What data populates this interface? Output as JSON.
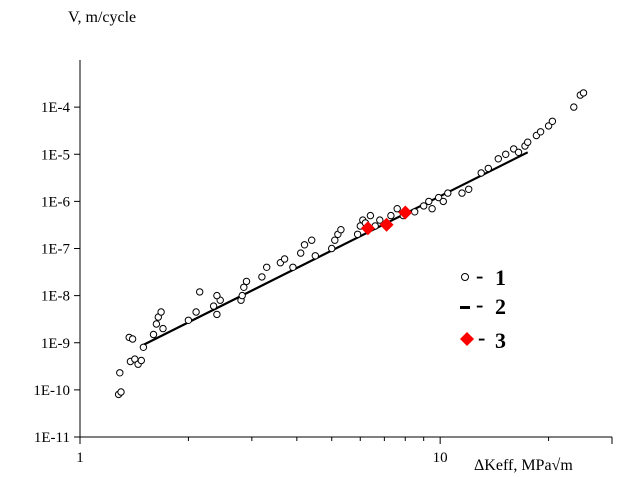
{
  "chart_data": {
    "type": "scatter",
    "x_scale": "log",
    "y_scale": "log",
    "xlim": [
      1,
      30
    ],
    "ylim": [
      1e-11,
      0.001
    ],
    "xlabel": "ΔKeff, MPa√m",
    "ylabel": "V, m/cycle",
    "grid": false,
    "legend_position": "right",
    "x_ticks": [
      {
        "value": 1,
        "label": "1"
      },
      {
        "value": 10,
        "label": "10"
      }
    ],
    "y_ticks": [
      {
        "value": 1e-11,
        "label": "1E-11"
      },
      {
        "value": 1e-10,
        "label": "1E-10"
      },
      {
        "value": 1e-09,
        "label": "1E-9"
      },
      {
        "value": 1e-08,
        "label": "1E-8"
      },
      {
        "value": 1e-07,
        "label": "1E-7"
      },
      {
        "value": 1e-06,
        "label": "1E-6"
      },
      {
        "value": 1e-05,
        "label": "1E-5"
      },
      {
        "value": 0.0001,
        "label": "1E-4"
      }
    ],
    "series": [
      {
        "name": "1",
        "marker": "open-circle",
        "color": "#000000",
        "points": [
          [
            1.28,
            8e-11
          ],
          [
            1.3,
            9e-11
          ],
          [
            1.29,
            2.3e-10
          ],
          [
            1.38,
            4e-10
          ],
          [
            1.42,
            4.5e-10
          ],
          [
            1.45,
            3.5e-10
          ],
          [
            1.48,
            4.2e-10
          ],
          [
            1.37,
            1.3e-09
          ],
          [
            1.4,
            1.2e-09
          ],
          [
            1.5,
            8e-10
          ],
          [
            1.6,
            1.5e-09
          ],
          [
            1.63,
            2.5e-09
          ],
          [
            1.65,
            3.5e-09
          ],
          [
            1.68,
            4.5e-09
          ],
          [
            1.7,
            2e-09
          ],
          [
            2.0,
            3e-09
          ],
          [
            2.1,
            4.5e-09
          ],
          [
            2.15,
            1.2e-08
          ],
          [
            2.35,
            6e-09
          ],
          [
            2.4,
            4e-09
          ],
          [
            2.45,
            8e-09
          ],
          [
            2.4,
            1e-08
          ],
          [
            2.8,
            8e-09
          ],
          [
            2.82,
            1e-08
          ],
          [
            2.85,
            1.5e-08
          ],
          [
            2.9,
            2e-08
          ],
          [
            3.2,
            2.5e-08
          ],
          [
            3.3,
            4e-08
          ],
          [
            3.6,
            5e-08
          ],
          [
            3.7,
            6e-08
          ],
          [
            3.9,
            4e-08
          ],
          [
            4.1,
            8e-08
          ],
          [
            4.2,
            1.2e-07
          ],
          [
            4.4,
            1.5e-07
          ],
          [
            4.5,
            7e-08
          ],
          [
            5.0,
            1e-07
          ],
          [
            5.1,
            1.5e-07
          ],
          [
            5.2,
            2e-07
          ],
          [
            5.3,
            2.5e-07
          ],
          [
            5.9,
            2e-07
          ],
          [
            6.0,
            3e-07
          ],
          [
            6.1,
            4e-07
          ],
          [
            6.2,
            3.5e-07
          ],
          [
            6.3,
            2.5e-07
          ],
          [
            6.4,
            5e-07
          ],
          [
            6.6,
            3e-07
          ],
          [
            6.8,
            4e-07
          ],
          [
            7.3,
            5e-07
          ],
          [
            7.6,
            7e-07
          ],
          [
            7.9,
            5e-07
          ],
          [
            8.5,
            6e-07
          ],
          [
            9.0,
            8e-07
          ],
          [
            9.3,
            1e-06
          ],
          [
            9.5,
            7e-07
          ],
          [
            9.9,
            1.2e-06
          ],
          [
            10.2,
            1e-06
          ],
          [
            10.5,
            1.5e-06
          ],
          [
            11.5,
            1.5e-06
          ],
          [
            12.0,
            1.8e-06
          ],
          [
            13.0,
            4e-06
          ],
          [
            13.6,
            5e-06
          ],
          [
            14.5,
            8e-06
          ],
          [
            15.2,
            1e-05
          ],
          [
            16.0,
            1.3e-05
          ],
          [
            16.5,
            1.1e-05
          ],
          [
            17.2,
            1.5e-05
          ],
          [
            17.5,
            1.8e-05
          ],
          [
            18.5,
            2.5e-05
          ],
          [
            19.0,
            3e-05
          ],
          [
            20.0,
            4e-05
          ],
          [
            20.5,
            5e-05
          ],
          [
            23.5,
            0.0001
          ],
          [
            24.5,
            0.00018
          ],
          [
            25.0,
            0.0002
          ]
        ]
      },
      {
        "name": "2",
        "marker": "line",
        "color": "#000000",
        "points": [
          [
            1.5,
            9e-10
          ],
          [
            17.5,
            1.1e-05
          ]
        ]
      },
      {
        "name": "3",
        "marker": "filled-diamond",
        "color": "#ff0000",
        "points": [
          [
            6.3,
            2.7e-07
          ],
          [
            7.1,
            3.2e-07
          ],
          [
            8.0,
            5.8e-07
          ]
        ]
      }
    ]
  }
}
